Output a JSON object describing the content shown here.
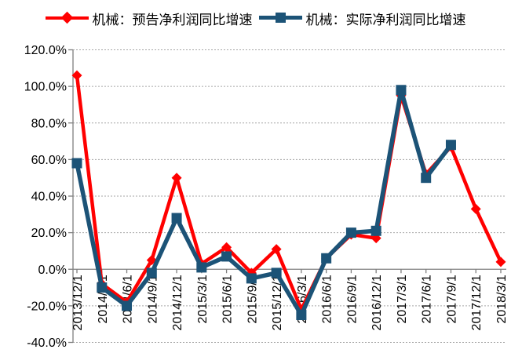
{
  "chart_data": {
    "type": "line",
    "title": "",
    "categories": [
      "2013/12/1",
      "2014/3/1",
      "2014/6/1",
      "2014/9/1",
      "2014/12/1",
      "2015/3/1",
      "2015/6/1",
      "2015/9/1",
      "2015/12/1",
      "2016/3/1",
      "2016/6/1",
      "2016/9/1",
      "2016/12/1",
      "2017/3/1",
      "2017/6/1",
      "2017/9/1",
      "2017/12/1",
      "2018/3/1"
    ],
    "series": [
      {
        "name": "机械：预告净利润同比增速",
        "color": "#FF0000",
        "marker": "diamond",
        "values": [
          106,
          -8,
          -18,
          5,
          50,
          3,
          12,
          -2,
          11,
          -22,
          6,
          19,
          17,
          95,
          52,
          67,
          33,
          4
        ]
      },
      {
        "name": "机械：实际净利润同比增速",
        "color": "#1C5377",
        "marker": "square",
        "values": [
          58,
          -10,
          -20,
          -2,
          28,
          1,
          7,
          -5,
          -2,
          -25,
          6,
          20,
          21,
          98,
          50,
          68,
          null,
          null
        ]
      }
    ],
    "ylim": [
      -40,
      120
    ],
    "ytick_step": 20,
    "ytick_labels": [
      "120.0%",
      "100.0%",
      "80.0%",
      "60.0%",
      "40.0%",
      "20.0%",
      "0.0%",
      "-20.0%",
      "-40.0%"
    ],
    "xlabel": "",
    "ylabel": "",
    "grid": "horizontal-dotted",
    "legend_position": "top"
  },
  "style": {
    "gridline_color": "#A6A6A6",
    "axis_color": "#808080",
    "text_color": "#000000",
    "background": "#FFFFFF"
  }
}
